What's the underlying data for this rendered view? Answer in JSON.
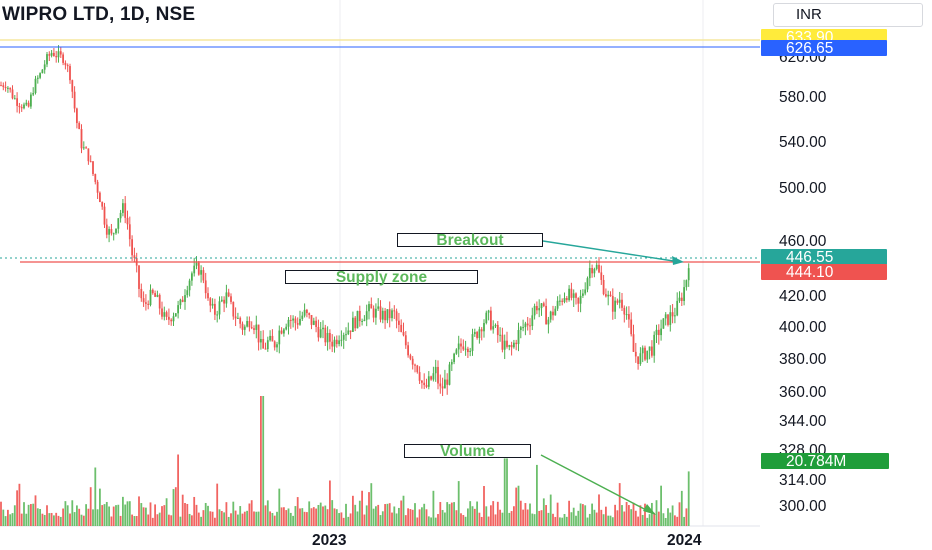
{
  "header": {
    "title": "WIPRO LTD, 1D, NSE",
    "currency": "INR"
  },
  "colors": {
    "up": "#26a69a",
    "up_bar": "#4caf50",
    "down": "#ef5350",
    "yellow_line": "#f5e79e",
    "blue_line": "#2962ff",
    "breakout_line": "#26a69a",
    "annotation_text": "#5cb85c"
  },
  "price_tags": {
    "high": {
      "text": "633.90",
      "bg": "#ffeb3b",
      "fg": "#131722"
    },
    "blue": {
      "text": "626.65",
      "bg": "#2962ff",
      "fg": "#ffffff"
    },
    "last": {
      "text": "446.55",
      "bg": "#26a69a",
      "fg": "#ffffff"
    },
    "supply": {
      "text": "444.10",
      "bg": "#ef5350",
      "fg": "#ffffff"
    },
    "volume": {
      "text": "20.784M",
      "bg": "#1f9d3a",
      "fg": "#ffffff"
    }
  },
  "annotations": {
    "breakout": "Breakout",
    "supply_zone": "Supply zone",
    "volume": "Volume"
  },
  "chart_data": {
    "type": "candlestick",
    "y_ticks": [
      "620.00",
      "580.00",
      "540.00",
      "500.00",
      "460.00",
      "420.00",
      "400.00",
      "380.00",
      "360.00",
      "344.00",
      "328.00",
      "314.00",
      "300.00"
    ],
    "x_ticks": [
      "2023",
      "2024"
    ],
    "levels": {
      "high_line": 633.9,
      "blue_line": 626.65,
      "supply_zone": 444.1,
      "last_price": 446.55
    },
    "path": [
      [
        0,
        590
      ],
      [
        6,
        592
      ],
      [
        14,
        578
      ],
      [
        22,
        572
      ],
      [
        28,
        568
      ],
      [
        34,
        590
      ],
      [
        40,
        600
      ],
      [
        46,
        614
      ],
      [
        52,
        622
      ],
      [
        58,
        618
      ],
      [
        64,
        616
      ],
      [
        70,
        600
      ],
      [
        76,
        560
      ],
      [
        82,
        535
      ],
      [
        88,
        528
      ],
      [
        94,
        508
      ],
      [
        100,
        492
      ],
      [
        106,
        470
      ],
      [
        112,
        462
      ],
      [
        118,
        478
      ],
      [
        124,
        485
      ],
      [
        128,
        470
      ],
      [
        132,
        450
      ],
      [
        136,
        440
      ],
      [
        140,
        420
      ],
      [
        144,
        412
      ],
      [
        148,
        418
      ],
      [
        154,
        420
      ],
      [
        160,
        412
      ],
      [
        166,
        402
      ],
      [
        172,
        408
      ],
      [
        180,
        412
      ],
      [
        186,
        426
      ],
      [
        192,
        436
      ],
      [
        198,
        440
      ],
      [
        204,
        432
      ],
      [
        208,
        415
      ],
      [
        214,
        408
      ],
      [
        220,
        414
      ],
      [
        226,
        420
      ],
      [
        232,
        410
      ],
      [
        238,
        404
      ],
      [
        244,
        398
      ],
      [
        250,
        405
      ],
      [
        256,
        400
      ],
      [
        262,
        384
      ],
      [
        268,
        390
      ],
      [
        274,
        388
      ],
      [
        280,
        398
      ],
      [
        288,
        405
      ],
      [
        296,
        402
      ],
      [
        304,
        408
      ],
      [
        310,
        404
      ],
      [
        318,
        398
      ],
      [
        326,
        392
      ],
      [
        334,
        390
      ],
      [
        340,
        396
      ],
      [
        348,
        398
      ],
      [
        356,
        404
      ],
      [
        364,
        408
      ],
      [
        370,
        410
      ],
      [
        378,
        408
      ],
      [
        386,
        406
      ],
      [
        394,
        408
      ],
      [
        400,
        396
      ],
      [
        406,
        388
      ],
      [
        412,
        380
      ],
      [
        418,
        374
      ],
      [
        424,
        360
      ],
      [
        430,
        366
      ],
      [
        436,
        372
      ],
      [
        440,
        360
      ],
      [
        446,
        366
      ],
      [
        452,
        375
      ],
      [
        458,
        385
      ],
      [
        464,
        390
      ],
      [
        470,
        388
      ],
      [
        476,
        395
      ],
      [
        482,
        402
      ],
      [
        488,
        406
      ],
      [
        494,
        398
      ],
      [
        500,
        392
      ],
      [
        506,
        385
      ],
      [
        512,
        386
      ],
      [
        518,
        395
      ],
      [
        524,
        400
      ],
      [
        530,
        404
      ],
      [
        536,
        414
      ],
      [
        542,
        410
      ],
      [
        548,
        404
      ],
      [
        554,
        410
      ],
      [
        560,
        416
      ],
      [
        566,
        422
      ],
      [
        572,
        418
      ],
      [
        578,
        412
      ],
      [
        584,
        425
      ],
      [
        590,
        440
      ],
      [
        596,
        442
      ],
      [
        602,
        428
      ],
      [
        608,
        418
      ],
      [
        614,
        412
      ],
      [
        620,
        418
      ],
      [
        626,
        410
      ],
      [
        630,
        396
      ],
      [
        634,
        382
      ],
      [
        640,
        380
      ],
      [
        646,
        384
      ],
      [
        652,
        386
      ],
      [
        658,
        396
      ],
      [
        664,
        402
      ],
      [
        670,
        406
      ],
      [
        676,
        410
      ],
      [
        682,
        420
      ],
      [
        686,
        430
      ],
      [
        689,
        446
      ]
    ],
    "volume_spikes": [
      [
        95,
        0.45
      ],
      [
        178,
        0.55
      ],
      [
        262,
        1.0
      ],
      [
        506,
        0.52
      ],
      [
        536,
        0.47
      ],
      [
        689,
        0.42
      ],
      [
        330,
        0.35
      ],
      [
        620,
        0.33
      ]
    ]
  }
}
